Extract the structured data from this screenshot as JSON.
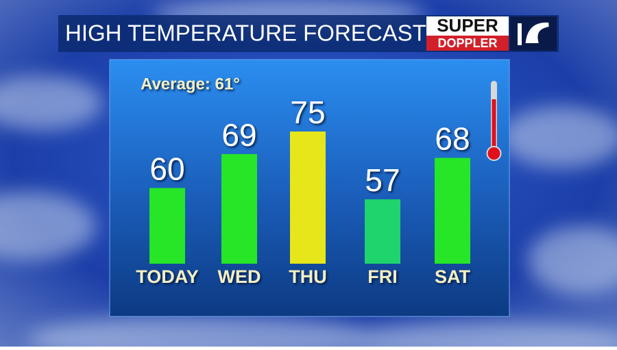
{
  "chart_data": {
    "type": "bar",
    "title": "HIGH TEMPERATURE FORECAST",
    "logo": {
      "top": "SUPER",
      "bottom": "DOPPLER"
    },
    "annotation": "Average: 61°",
    "categories": [
      "TODAY",
      "WED",
      "THU",
      "FRI",
      "SAT"
    ],
    "values": [
      60,
      69,
      75,
      57,
      68
    ],
    "colors": [
      "#26e627",
      "#26e627",
      "#e6e61a",
      "#1fd36d",
      "#26e627"
    ]
  }
}
